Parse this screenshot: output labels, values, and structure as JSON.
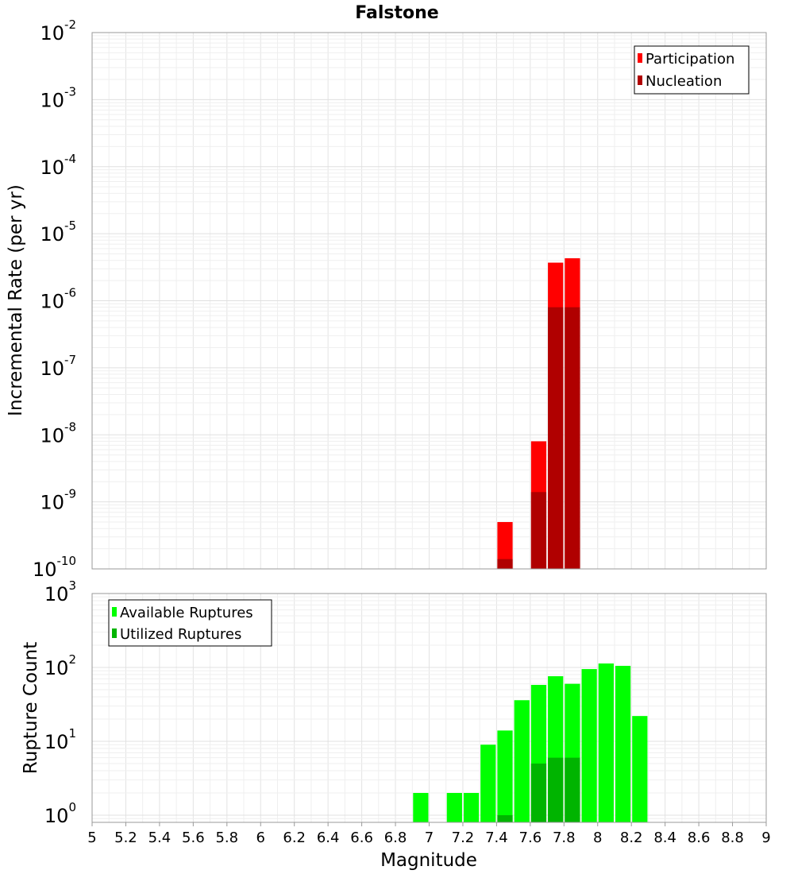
{
  "chart_data": [
    {
      "type": "bar",
      "panel": "top",
      "title": "Falstone",
      "ylabel": "Incremental Rate (per yr)",
      "xlabel": "",
      "yscale": "log",
      "ylim": [
        1e-10,
        0.01
      ],
      "xlim": [
        5,
        9
      ],
      "ytick_labels": [
        {
          "base": "10",
          "exp": "-2"
        },
        {
          "base": "10",
          "exp": "-3"
        },
        {
          "base": "10",
          "exp": "-4"
        },
        {
          "base": "10",
          "exp": "-5"
        },
        {
          "base": "10",
          "exp": "-6"
        },
        {
          "base": "10",
          "exp": "-7"
        },
        {
          "base": "10",
          "exp": "-8"
        },
        {
          "base": "10",
          "exp": "-9"
        },
        {
          "base": "10",
          "exp": "-10"
        }
      ],
      "legend": {
        "position": "top-right",
        "entries": [
          "Participation",
          "Nucleation"
        ]
      },
      "series": [
        {
          "name": "Participation",
          "color": "#ff0000",
          "x": [
            7.45,
            7.65,
            7.75,
            7.85
          ],
          "values": [
            5e-10,
            8e-09,
            3.7e-06,
            4.3e-06
          ]
        },
        {
          "name": "Nucleation",
          "color": "#b00000",
          "x": [
            7.45,
            7.65,
            7.75,
            7.85
          ],
          "values": [
            1.4e-10,
            1.4e-09,
            8e-07,
            8e-07
          ]
        }
      ]
    },
    {
      "type": "bar",
      "panel": "bottom",
      "title": "",
      "ylabel": "Rupture Count",
      "xlabel": "Magnitude",
      "yscale": "log",
      "ylim": [
        0.8,
        1000
      ],
      "xlim": [
        5,
        9
      ],
      "ytick_labels": [
        {
          "base": "10",
          "exp": "3"
        },
        {
          "base": "10",
          "exp": "2"
        },
        {
          "base": "10",
          "exp": "1"
        },
        {
          "base": "10",
          "exp": "0"
        }
      ],
      "xtick_labels": [
        "5",
        "5.2",
        "5.4",
        "5.6",
        "5.8",
        "6",
        "6.2",
        "6.4",
        "6.6",
        "6.8",
        "7",
        "7.2",
        "7.4",
        "7.6",
        "7.8",
        "8",
        "8.2",
        "8.4",
        "8.6",
        "8.8",
        "9"
      ],
      "legend": {
        "position": "top-left",
        "entries": [
          "Available Ruptures",
          "Utilized Ruptures"
        ]
      },
      "series": [
        {
          "name": "Available Ruptures",
          "color": "#00ff00",
          "x": [
            6.95,
            7.15,
            7.25,
            7.35,
            7.45,
            7.55,
            7.65,
            7.75,
            7.85,
            7.95,
            8.05,
            8.15,
            8.25
          ],
          "values": [
            2,
            2,
            2,
            9,
            14,
            36,
            58,
            76,
            60,
            95,
            113,
            105,
            22
          ]
        },
        {
          "name": "Utilized Ruptures",
          "color": "#00b400",
          "x": [
            7.45,
            7.65,
            7.75,
            7.85
          ],
          "values": [
            1,
            5,
            6,
            6
          ]
        }
      ]
    }
  ]
}
